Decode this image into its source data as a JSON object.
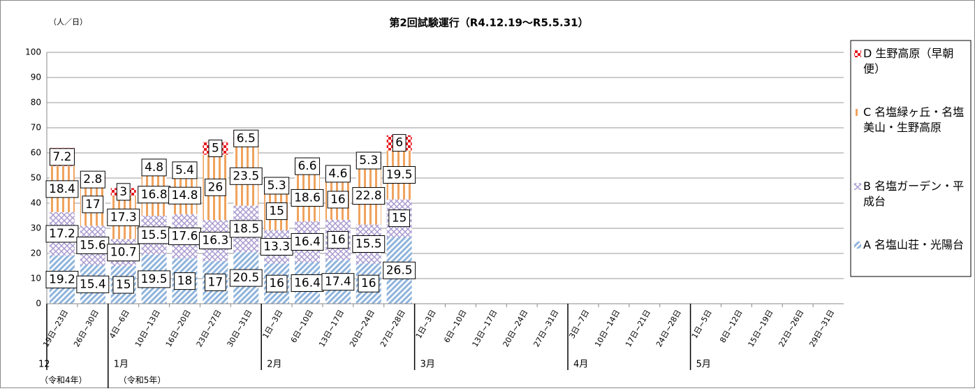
{
  "chart_data": {
    "type": "stacked_bar",
    "title": "第2回試験運行（R4.12.19〜R5.5.31）",
    "y_axis_label": "（人／日）",
    "categories": [
      "19日~23日",
      "26日~30日",
      "4日~6日",
      "10日~13日",
      "16日~20日",
      "23日~27日",
      "30日~31日",
      "1日~3日",
      "6日~10日",
      "13日~17日",
      "20日~24日",
      "27日~28日",
      "1日~3日",
      "6日~10日",
      "13日~17日",
      "20日~24日",
      "27日~31日",
      "3日~7日",
      "10日~14日",
      "17日~21日",
      "24日~28日",
      "1日~5日",
      "8日~12日",
      "15日~19日",
      "22日~26日",
      "29日~31日"
    ],
    "x_groups": [
      {
        "label": "12",
        "size": 2,
        "year": "（令和4年）"
      },
      {
        "label": "1月",
        "size": 5,
        "year": "（令和5年）"
      },
      {
        "label": "2月",
        "size": 5
      },
      {
        "label": "3月",
        "size": 5
      },
      {
        "label": "4月",
        "size": 4
      },
      {
        "label": "5月",
        "size": 5
      }
    ],
    "series": [
      {
        "name": "A 名塩山荘・光陽台",
        "color": "#8fb4dc",
        "values": [
          19.2,
          15.4,
          15,
          19.5,
          18,
          17,
          20.5,
          16,
          16.4,
          17.4,
          16,
          26.5,
          null,
          null,
          null,
          null,
          null,
          null,
          null,
          null,
          null,
          null,
          null,
          null,
          null,
          null
        ]
      },
      {
        "name": "B 名塩ガーデン・平成台",
        "color": "#a99bd0",
        "values": [
          17.2,
          15.6,
          10.7,
          15.5,
          17.6,
          16.3,
          18.5,
          13.3,
          16.4,
          16,
          15.5,
          15,
          null,
          null,
          null,
          null,
          null,
          null,
          null,
          null,
          null,
          null,
          null,
          null,
          null,
          null
        ]
      },
      {
        "name": "C 名塩緑ヶ丘・名塩美山・生野高原",
        "color": "#f0a35e",
        "values": [
          18.4,
          17,
          17.3,
          16.8,
          14.8,
          26,
          23.5,
          15,
          18.6,
          16,
          22.8,
          19.5,
          null,
          null,
          null,
          null,
          null,
          null,
          null,
          null,
          null,
          null,
          null,
          null,
          null,
          null
        ]
      },
      {
        "name": "D 生野高原（早朝便）",
        "color": "#e8181e",
        "values": [
          7.2,
          2.8,
          3,
          4.8,
          5.4,
          5,
          6.5,
          5.3,
          6.6,
          4.6,
          5.3,
          6,
          null,
          null,
          null,
          null,
          null,
          null,
          null,
          null,
          null,
          null,
          null,
          null,
          null,
          null
        ]
      }
    ],
    "ylim": [
      0,
      100
    ],
    "yticks": [
      0,
      10,
      20,
      30,
      40,
      50,
      60,
      70,
      80,
      90,
      100
    ],
    "grid": true,
    "legend": "right"
  }
}
